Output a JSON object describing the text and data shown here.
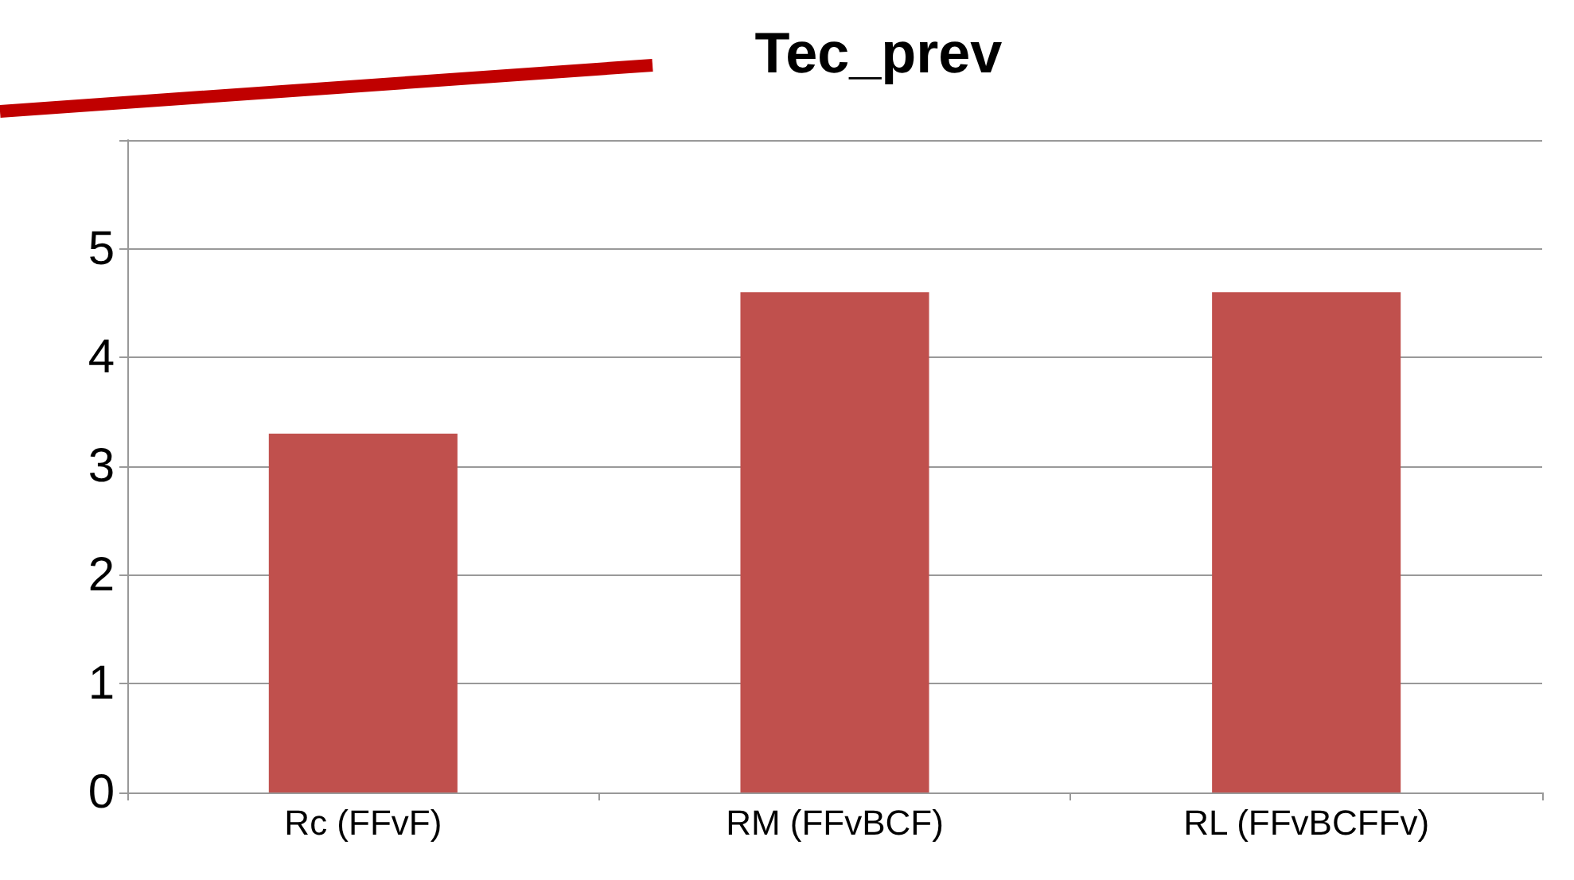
{
  "chart_data": {
    "type": "bar",
    "title": "Tec_prev",
    "categories": [
      "Rc (FFvF)",
      "RM (FFvBCF)",
      "RL (FFvBCFFv)"
    ],
    "values": [
      3.3,
      4.6,
      4.6
    ],
    "color": "#c0504d",
    "ylim": [
      0,
      6
    ],
    "yticks": [
      0,
      1,
      2,
      3,
      4,
      5,
      {
        "value": 6,
        "label": null
      }
    ],
    "grid": true
  }
}
